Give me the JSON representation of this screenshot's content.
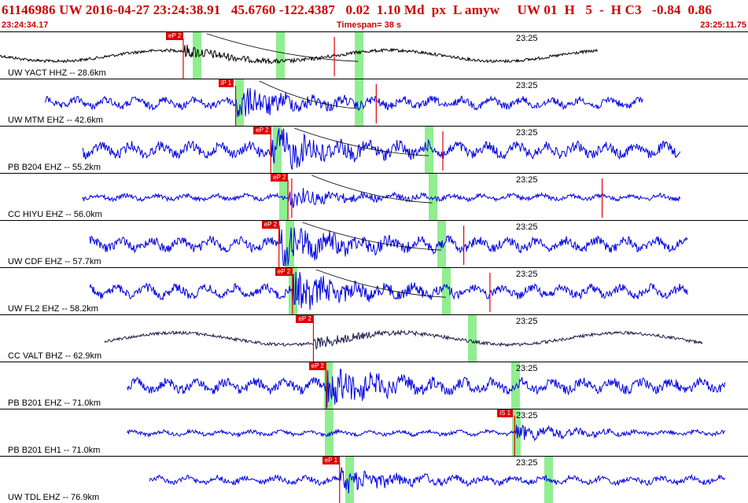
{
  "header": {
    "event_line": "61146986 UW 2016-04-27 23:24:38.91   45.6760 -122.4387   0.02  1.10 Md  px  L amyw     UW 01  H   5  -  H C3   -0.84  0.86",
    "start_time": "23:24:34.17",
    "timespan": "Timespan=  38 s",
    "end_time": "23:25:11.75"
  },
  "colors": {
    "header_text": "#cc0000",
    "trace_blue": "#0000e0",
    "trace_black": "#000000",
    "trace_dark": "#1a1a4a",
    "window": "#90ee90",
    "pick": "#e00000"
  },
  "time_tick_label": "23:25",
  "panels": [
    {
      "label": "UW YACT HHZ -- 28.6km",
      "pick": "eP 2",
      "trace_color": "#000000",
      "pick_t": 0.245,
      "green": [
        0.263,
        0.374,
        0.479
      ],
      "trace_start": 0.0,
      "trace_end": 0.8,
      "amp": 0.55,
      "red_t": [
        0.447
      ]
    },
    {
      "label": "UW MTM EHZ -- 42.6km",
      "pick": "iP 1",
      "trace_color": "#0000e0",
      "pick_t": 0.315,
      "green": [
        0.32,
        0.479
      ],
      "trace_start": 0.06,
      "trace_end": 0.86,
      "amp": 0.6,
      "red_t": [
        0.503
      ]
    },
    {
      "label": "PB B204 EHZ -- 55.2km",
      "pick": "eP 2",
      "trace_color": "#0000e0",
      "pick_t": 0.362,
      "green": [
        0.37,
        0.573
      ],
      "trace_start": 0.11,
      "trace_end": 0.91,
      "amp": 0.8,
      "red_t": [
        0.592
      ]
    },
    {
      "label": "CC HIYU EHZ -- 56.0km",
      "pick": "eP 2",
      "trace_color": "#0000e0",
      "pick_t": 0.385,
      "green": [
        0.379,
        0.578
      ],
      "trace_start": 0.11,
      "trace_end": 0.91,
      "amp": 0.35,
      "red_t": [
        0.39,
        0.805
      ]
    },
    {
      "label": "UW CDF EHZ -- 57.7km",
      "pick": "eP 2",
      "trace_color": "#0000e0",
      "pick_t": 0.373,
      "green": [
        0.387,
        0.59
      ],
      "trace_start": 0.12,
      "trace_end": 0.92,
      "amp": 0.75,
      "red_t": [
        0.62
      ]
    },
    {
      "label": "UW FL2 EHZ -- 58.2km",
      "pick": "eP 2",
      "trace_color": "#0000e0",
      "pick_t": 0.391,
      "green": [
        0.391,
        0.596
      ],
      "trace_start": 0.12,
      "trace_end": 0.92,
      "amp": 0.7,
      "red_t": [
        0.655
      ]
    },
    {
      "label": "CC VALT BHZ -- 62.9km",
      "pick": "eP 2",
      "trace_color": "#1a1a4a",
      "pick_t": 0.419,
      "green": [
        0.631
      ],
      "trace_start": 0.14,
      "trace_end": 0.94,
      "amp": 0.6,
      "red_t": []
    },
    {
      "label": "PB B201 EHZ -- 71.0km",
      "pick": "eP 2",
      "trace_color": "#0000e0",
      "pick_t": 0.436,
      "green": [
        0.439,
        0.689
      ],
      "trace_start": 0.17,
      "trace_end": 0.97,
      "amp": 0.75,
      "red_t": []
    },
    {
      "label": "PB B201 EH1 -- 71.0km",
      "pick": "iS 1",
      "trace_color": "#0000e0",
      "pick_t": 0.688,
      "green": [
        0.44,
        0.69
      ],
      "trace_start": 0.17,
      "trace_end": 0.97,
      "amp": 0.3,
      "red_t": []
    },
    {
      "label": "UW TDL EHZ -- 76.9km",
      "pick": "eP 1",
      "trace_color": "#0000e0",
      "pick_t": 0.454,
      "green": [
        0.467,
        0.733
      ],
      "trace_start": 0.2,
      "trace_end": 0.97,
      "amp": 0.45,
      "red_t": []
    }
  ]
}
